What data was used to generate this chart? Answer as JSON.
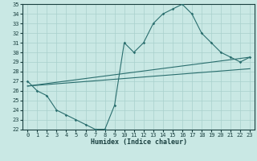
{
  "xlabel": "Humidex (Indice chaleur)",
  "ylabel": "",
  "xlim": [
    -0.5,
    23.5
  ],
  "ylim": [
    22,
    35
  ],
  "yticks": [
    22,
    23,
    24,
    25,
    26,
    27,
    28,
    29,
    30,
    31,
    32,
    33,
    34,
    35
  ],
  "xticks": [
    0,
    1,
    2,
    3,
    4,
    5,
    6,
    7,
    8,
    9,
    10,
    11,
    12,
    13,
    14,
    15,
    16,
    17,
    18,
    19,
    20,
    21,
    22,
    23
  ],
  "bg_color": "#c9e8e4",
  "grid_color": "#a8d0cc",
  "line_color": "#2a6e6e",
  "line1_x": [
    0,
    1,
    2,
    3,
    4,
    5,
    6,
    7,
    8,
    9,
    10,
    11,
    12,
    13,
    14,
    15,
    16,
    17,
    18,
    19,
    20,
    21,
    22,
    23
  ],
  "line1_y": [
    27,
    26,
    25.5,
    24,
    23.5,
    23,
    22.5,
    22,
    22,
    24.5,
    31,
    30,
    31,
    33,
    34,
    34.5,
    35,
    34,
    32,
    31,
    30,
    29.5,
    29,
    29.5
  ],
  "line2_x": [
    0,
    23
  ],
  "line2_y": [
    26.5,
    29.5
  ],
  "line3_x": [
    0,
    23
  ],
  "line3_y": [
    26.5,
    28.3
  ],
  "xlabel_fontsize": 6,
  "tick_fontsize": 5,
  "linewidth": 0.8,
  "markersize": 1.8
}
